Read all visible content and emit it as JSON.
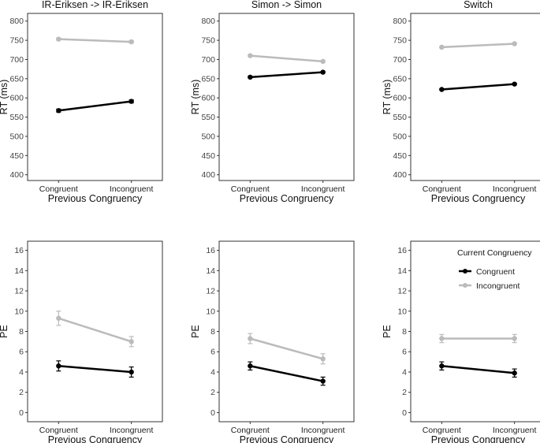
{
  "chart_data": [
    {
      "type": "line",
      "title": "IR-Eriksen -> IR-Eriksen",
      "xlabel": "Previous Congruency",
      "ylabel": "RT (ms)",
      "categories": [
        "Congruent",
        "Incongruent"
      ],
      "ylim": [
        385,
        820
      ],
      "yticks": [
        400,
        450,
        500,
        550,
        600,
        650,
        700,
        750,
        800
      ],
      "series": [
        {
          "name": "Congruent",
          "values": [
            567,
            591
          ],
          "error": [
            4,
            4
          ],
          "color": "#000000"
        },
        {
          "name": "Incongruent",
          "values": [
            753,
            746
          ],
          "error": [
            3,
            3
          ],
          "color": "#bbbbbb"
        }
      ]
    },
    {
      "type": "line",
      "title": "Simon -> Simon",
      "xlabel": "Previous Congruency",
      "ylabel": "RT (ms)",
      "categories": [
        "Congruent",
        "Incongruent"
      ],
      "ylim": [
        385,
        820
      ],
      "yticks": [
        400,
        450,
        500,
        550,
        600,
        650,
        700,
        750,
        800
      ],
      "series": [
        {
          "name": "Congruent",
          "values": [
            654,
            667
          ],
          "error": [
            2,
            2
          ],
          "color": "#000000"
        },
        {
          "name": "Incongruent",
          "values": [
            710,
            695
          ],
          "error": [
            2,
            2
          ],
          "color": "#bbbbbb"
        }
      ]
    },
    {
      "type": "line",
      "title": "Switch",
      "xlabel": "Previous Congruency",
      "ylabel": "RT (ms)",
      "categories": [
        "Congruent",
        "Incongruent"
      ],
      "ylim": [
        385,
        820
      ],
      "yticks": [
        400,
        450,
        500,
        550,
        600,
        650,
        700,
        750,
        800
      ],
      "series": [
        {
          "name": "Congruent",
          "values": [
            622,
            636
          ],
          "error": [
            2,
            2
          ],
          "color": "#000000"
        },
        {
          "name": "Incongruent",
          "values": [
            732,
            741
          ],
          "error": [
            2,
            2
          ],
          "color": "#bbbbbb"
        }
      ]
    },
    {
      "type": "line",
      "title": "",
      "xlabel": "Previous Congruency",
      "ylabel": "PE",
      "categories": [
        "Congruent",
        "Incongruent"
      ],
      "ylim": [
        -0.9,
        16.9
      ],
      "yticks": [
        0,
        2,
        4,
        6,
        8,
        10,
        12,
        14,
        16
      ],
      "series": [
        {
          "name": "Congruent",
          "values": [
            4.6,
            4.0
          ],
          "error": [
            0.5,
            0.5
          ],
          "color": "#000000"
        },
        {
          "name": "Incongruent",
          "values": [
            9.3,
            7.0
          ],
          "error": [
            0.7,
            0.5
          ],
          "color": "#bbbbbb"
        }
      ]
    },
    {
      "type": "line",
      "title": "",
      "xlabel": "Previous Congruency",
      "ylabel": "PE",
      "categories": [
        "Congruent",
        "Incongruent"
      ],
      "ylim": [
        -0.9,
        16.9
      ],
      "yticks": [
        0,
        2,
        4,
        6,
        8,
        10,
        12,
        14,
        16
      ],
      "series": [
        {
          "name": "Congruent",
          "values": [
            4.6,
            3.1
          ],
          "error": [
            0.4,
            0.4
          ],
          "color": "#000000"
        },
        {
          "name": "Incongruent",
          "values": [
            7.3,
            5.3
          ],
          "error": [
            0.5,
            0.5
          ],
          "color": "#bbbbbb"
        }
      ]
    },
    {
      "type": "line",
      "title": "",
      "xlabel": "Previous Congruency",
      "ylabel": "PE",
      "categories": [
        "Congruent",
        "Incongruent"
      ],
      "ylim": [
        -0.9,
        16.9
      ],
      "yticks": [
        0,
        2,
        4,
        6,
        8,
        10,
        12,
        14,
        16
      ],
      "series": [
        {
          "name": "Congruent",
          "values": [
            4.6,
            3.9
          ],
          "error": [
            0.4,
            0.4
          ],
          "color": "#000000"
        },
        {
          "name": "Incongruent",
          "values": [
            7.3,
            7.3
          ],
          "error": [
            0.4,
            0.4
          ],
          "color": "#bbbbbb"
        }
      ]
    }
  ],
  "legend": {
    "title": "Current Congruency",
    "placement": "top-right of bottom-right panel",
    "entries": [
      {
        "label": "Congruent",
        "color": "#000000"
      },
      {
        "label": "Incongruent",
        "color": "#bbbbbb"
      }
    ]
  }
}
